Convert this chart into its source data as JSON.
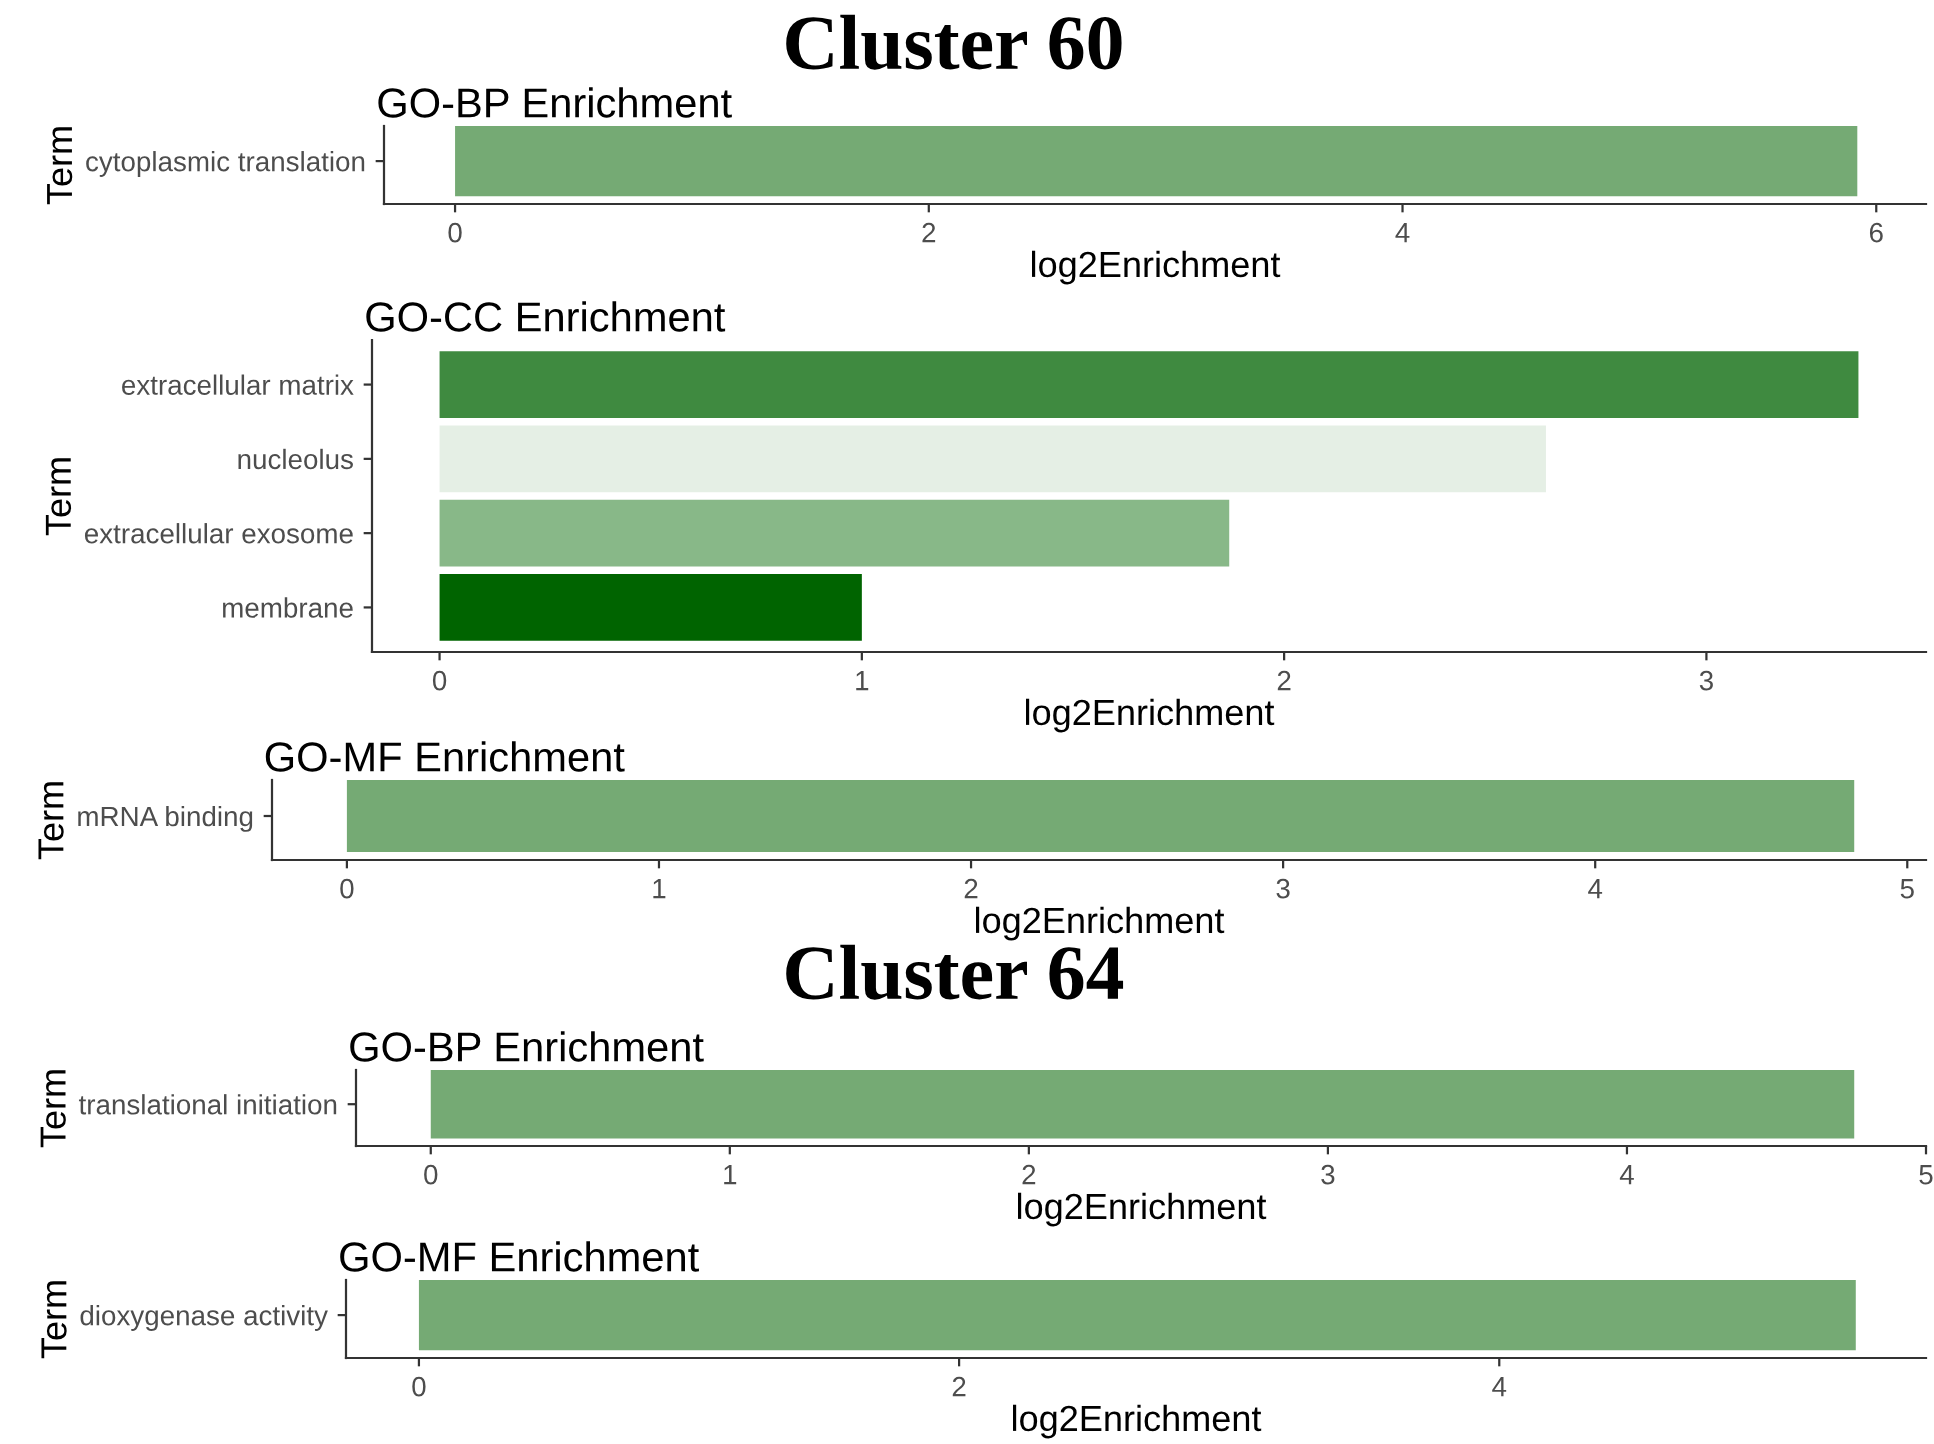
{
  "chart_data": [
    {
      "type": "bar",
      "orientation": "horizontal",
      "annotations": [
        "Cluster 60"
      ],
      "title": "GO-BP Enrichment",
      "xlabel": "log2Enrichment",
      "ylabel": "Term",
      "categories": [
        "cytoplasmic translation"
      ],
      "values": [
        5.92
      ],
      "colors": [
        "#75aa74"
      ],
      "xlim": [
        -0.3,
        6.21
      ],
      "xticks": [
        0,
        2,
        4,
        6
      ],
      "grid": false,
      "legend": false
    },
    {
      "type": "bar",
      "orientation": "horizontal",
      "title": "GO-CC Enrichment",
      "xlabel": "log2Enrichment",
      "ylabel": "Term",
      "categories": [
        "extracellular matrix",
        "nucleolus",
        "extracellular exosome",
        "membrane"
      ],
      "values": [
        3.36,
        2.62,
        1.87,
        1.0
      ],
      "colors": [
        "#3f8a40",
        "#e5efe5",
        "#88b888",
        "#006400"
      ],
      "xlim": [
        -0.16,
        3.52
      ],
      "xticks": [
        0,
        1,
        2,
        3
      ],
      "grid": false,
      "legend": false
    },
    {
      "type": "bar",
      "orientation": "horizontal",
      "title": "GO-MF Enrichment",
      "xlabel": "log2Enrichment",
      "ylabel": "Term",
      "categories": [
        "mRNA binding"
      ],
      "values": [
        4.83
      ],
      "colors": [
        "#75aa74"
      ],
      "xlim": [
        -0.24,
        5.06
      ],
      "xticks": [
        0,
        1,
        2,
        3,
        4,
        5
      ],
      "grid": false,
      "legend": false
    },
    {
      "type": "bar",
      "orientation": "horizontal",
      "annotations": [
        "Cluster 64"
      ],
      "title": "GO-BP Enrichment",
      "xlabel": "log2Enrichment",
      "ylabel": "Term",
      "categories": [
        "translational initiation"
      ],
      "values": [
        4.76
      ],
      "colors": [
        "#75aa74"
      ],
      "xlim": [
        -0.25,
        5.0
      ],
      "xticks": [
        0,
        1,
        2,
        3,
        4,
        5
      ],
      "grid": false,
      "legend": false
    },
    {
      "type": "bar",
      "orientation": "horizontal",
      "title": "GO-MF Enrichment",
      "xlabel": "log2Enrichment",
      "ylabel": "Term",
      "categories": [
        "dioxygenase activity"
      ],
      "values": [
        5.32
      ],
      "colors": [
        "#75aa74"
      ],
      "xlim": [
        -0.27,
        5.58
      ],
      "xticks": [
        0,
        2,
        4
      ],
      "grid": false,
      "legend": false
    }
  ]
}
